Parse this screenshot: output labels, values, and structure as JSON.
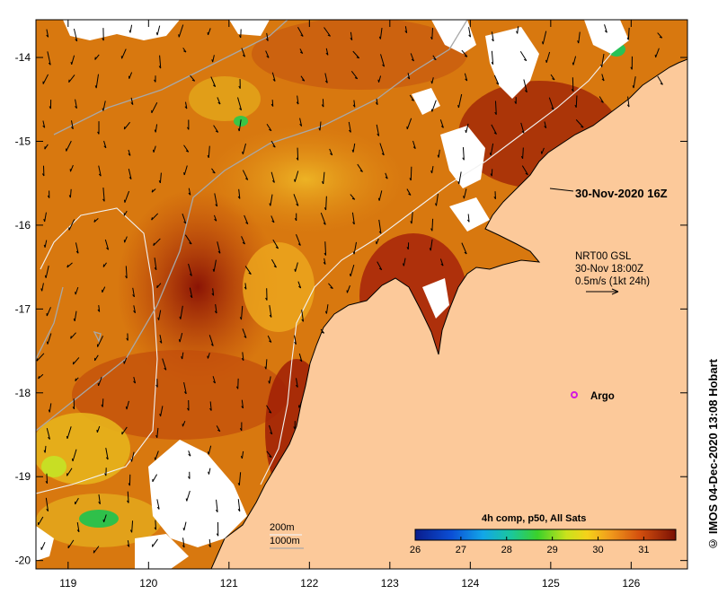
{
  "map": {
    "lon_range": [
      118.6,
      126.7
    ],
    "lat_range": [
      -20.1,
      -13.55
    ],
    "lon_ticks": [
      "119",
      "120",
      "121",
      "122",
      "123",
      "124",
      "125",
      "126"
    ],
    "lat_ticks": [
      "-14",
      "-15",
      "-16",
      "-17",
      "-18",
      "-19",
      "-20"
    ],
    "land_color": "#fcc99a",
    "coast_color": "#000000"
  },
  "annotations": {
    "time_label": "30-Nov-2020 16Z",
    "current_source": "NRT00 GSL",
    "current_time": "30-Nov 18:00Z",
    "current_scale": "0.5m/s (1kt 24h)",
    "argo_label": "Argo"
  },
  "depth_legend": {
    "contour_200": "200m",
    "contour_1000": "1000m"
  },
  "colorbar": {
    "title": "4h comp, p50, All Sats",
    "ticks": [
      "26",
      "27",
      "28",
      "29",
      "30",
      "31"
    ],
    "range": [
      26,
      31.7
    ]
  },
  "credit": "IMOS 04-Dec-2020 13:08 Hobart",
  "credit_icon": "copyright-icon"
}
